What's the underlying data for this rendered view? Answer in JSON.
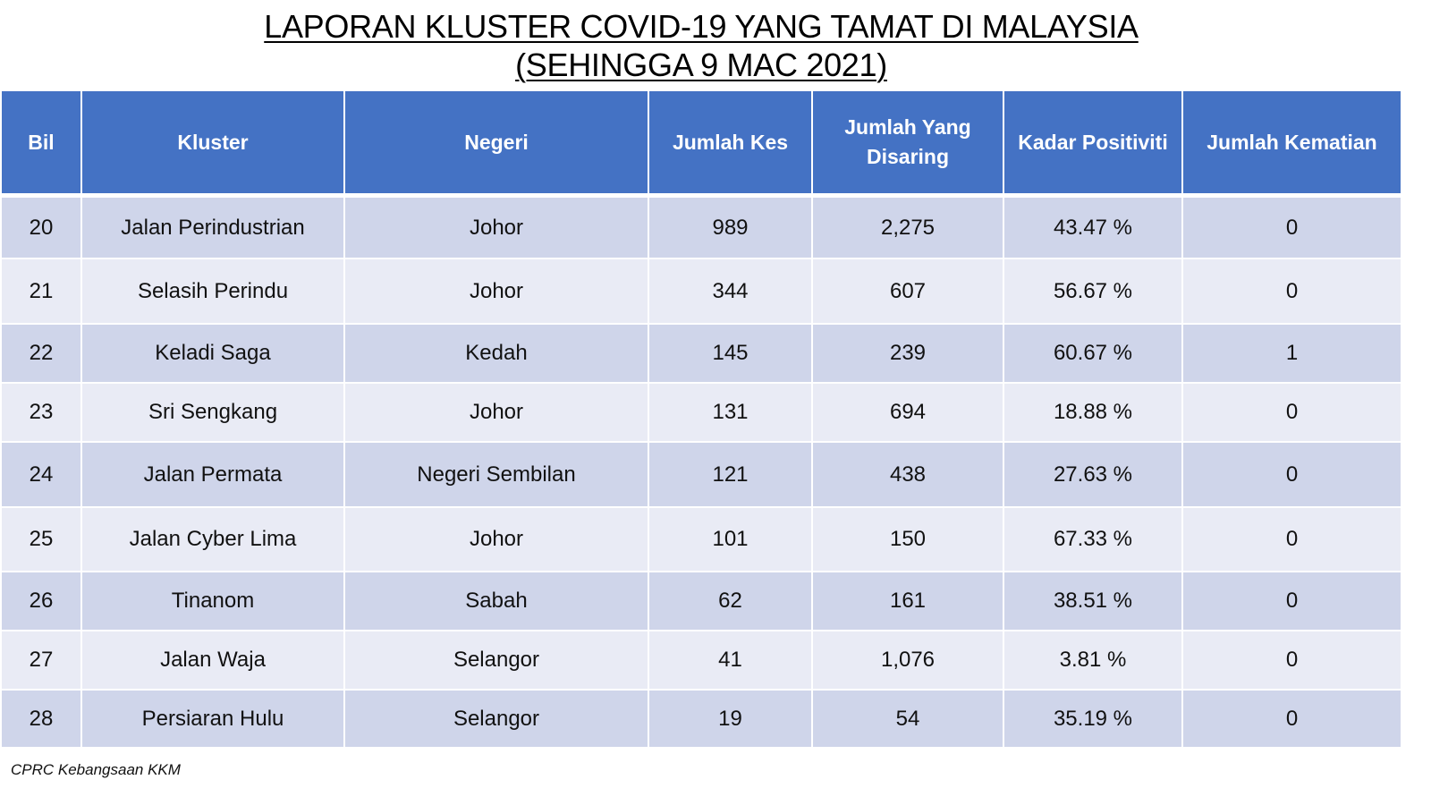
{
  "title": {
    "line1": "LAPORAN KLUSTER COVID-19 YANG TAMAT DI MALAYSIA",
    "line2": "(SEHINGGA  9 MAC 2021)"
  },
  "table": {
    "headers": [
      "Bil",
      "Kluster",
      "Negeri",
      "Jumlah Kes",
      "Jumlah Yang Disaring",
      "Kadar Positiviti",
      "Jumlah Kematian"
    ],
    "rows": [
      [
        "20",
        "Jalan Perindustrian",
        "Johor",
        "989",
        "2,275",
        "43.47 %",
        "0"
      ],
      [
        "21",
        "Selasih Perindu",
        "Johor",
        "344",
        "607",
        "56.67 %",
        "0"
      ],
      [
        "22",
        "Keladi Saga",
        "Kedah",
        "145",
        "239",
        "60.67 %",
        "1"
      ],
      [
        "23",
        "Sri Sengkang",
        "Johor",
        "131",
        "694",
        "18.88 %",
        "0"
      ],
      [
        "24",
        "Jalan Permata",
        "Negeri Sembilan",
        "121",
        "438",
        "27.63 %",
        "0"
      ],
      [
        "25",
        "Jalan Cyber Lima",
        "Johor",
        "101",
        "150",
        "67.33 %",
        "0"
      ],
      [
        "26",
        "Tinanom",
        "Sabah",
        "62",
        "161",
        "38.51 %",
        "0"
      ],
      [
        "27",
        "Jalan Waja",
        "Selangor",
        "41",
        "1,076",
        "3.81 %",
        "0"
      ],
      [
        "28",
        "Persiaran Hulu",
        "Selangor",
        "19",
        "54",
        "35.19 %",
        "0"
      ]
    ]
  },
  "footer": "CPRC Kebangsaan KKM",
  "colors": {
    "header_bg": "#4472c4",
    "row_dark": "#cfd5ea",
    "row_light": "#e9ebf5"
  }
}
